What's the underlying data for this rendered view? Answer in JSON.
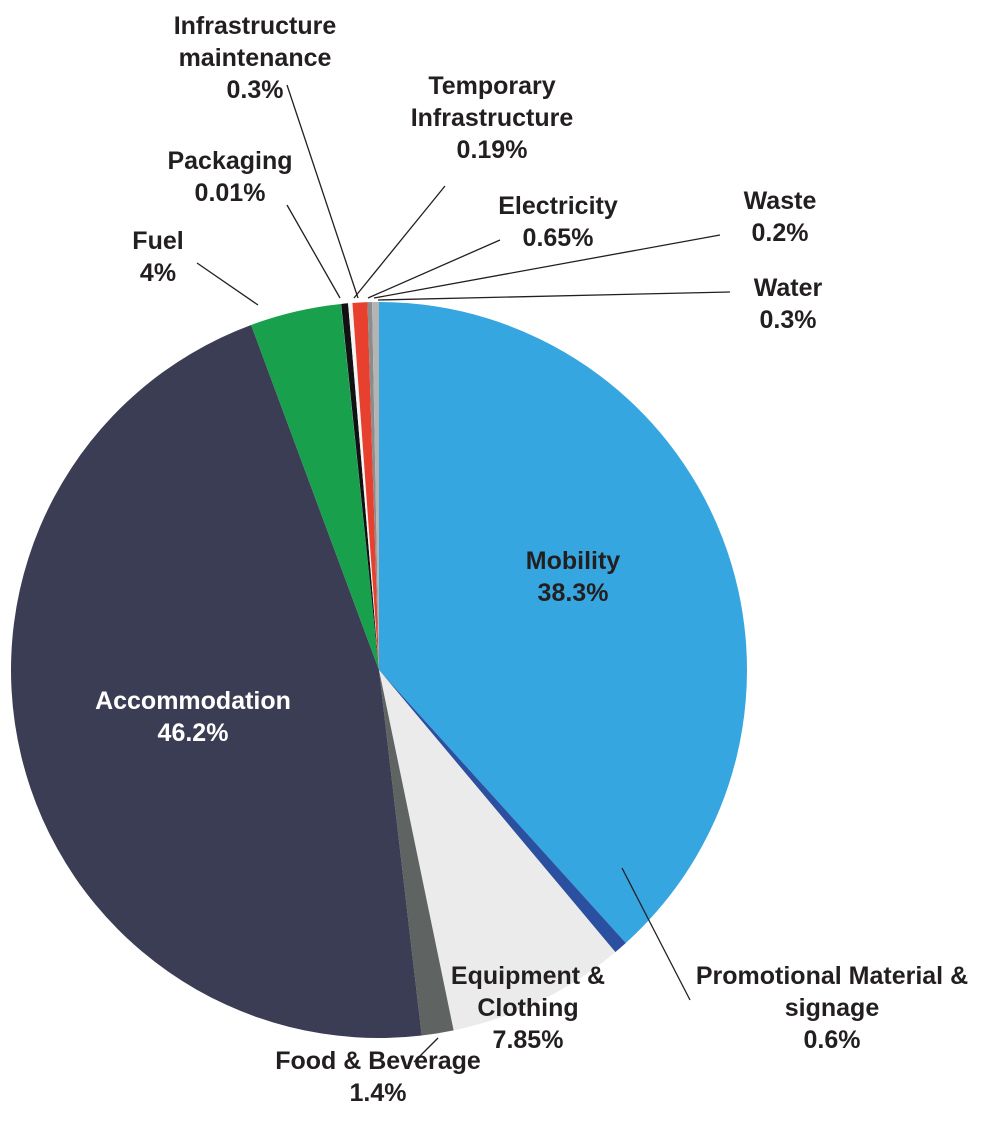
{
  "chart_data": {
    "type": "pie",
    "categories": [
      "Mobility",
      "Promotional Material & signage",
      "Equipment & Clothing",
      "Food & Beverage",
      "Accommodation",
      "Fuel",
      "Packaging",
      "Infrastructure maintenance",
      "Temporary Infrastructure",
      "Electricity",
      "Waste",
      "Water"
    ],
    "values": [
      38.3,
      0.6,
      7.85,
      1.4,
      46.2,
      4,
      0.01,
      0.3,
      0.19,
      0.65,
      0.2,
      0.3
    ],
    "value_labels": [
      "38.3%",
      "0.6%",
      "7.85%",
      "1.4%",
      "46.2%",
      "4%",
      "0.01%",
      "0.3%",
      "0.19%",
      "0.65%",
      "0.2%",
      "0.3%"
    ],
    "colors": [
      "#35a6df",
      "#2b50a0",
      "#ebebeb",
      "#5f6462",
      "#3b3d54",
      "#18a04d",
      "#a0dde8",
      "#111111",
      "#f4f4f4",
      "#e8402f",
      "#8c8c8c",
      "#b4b4b4"
    ]
  }
}
